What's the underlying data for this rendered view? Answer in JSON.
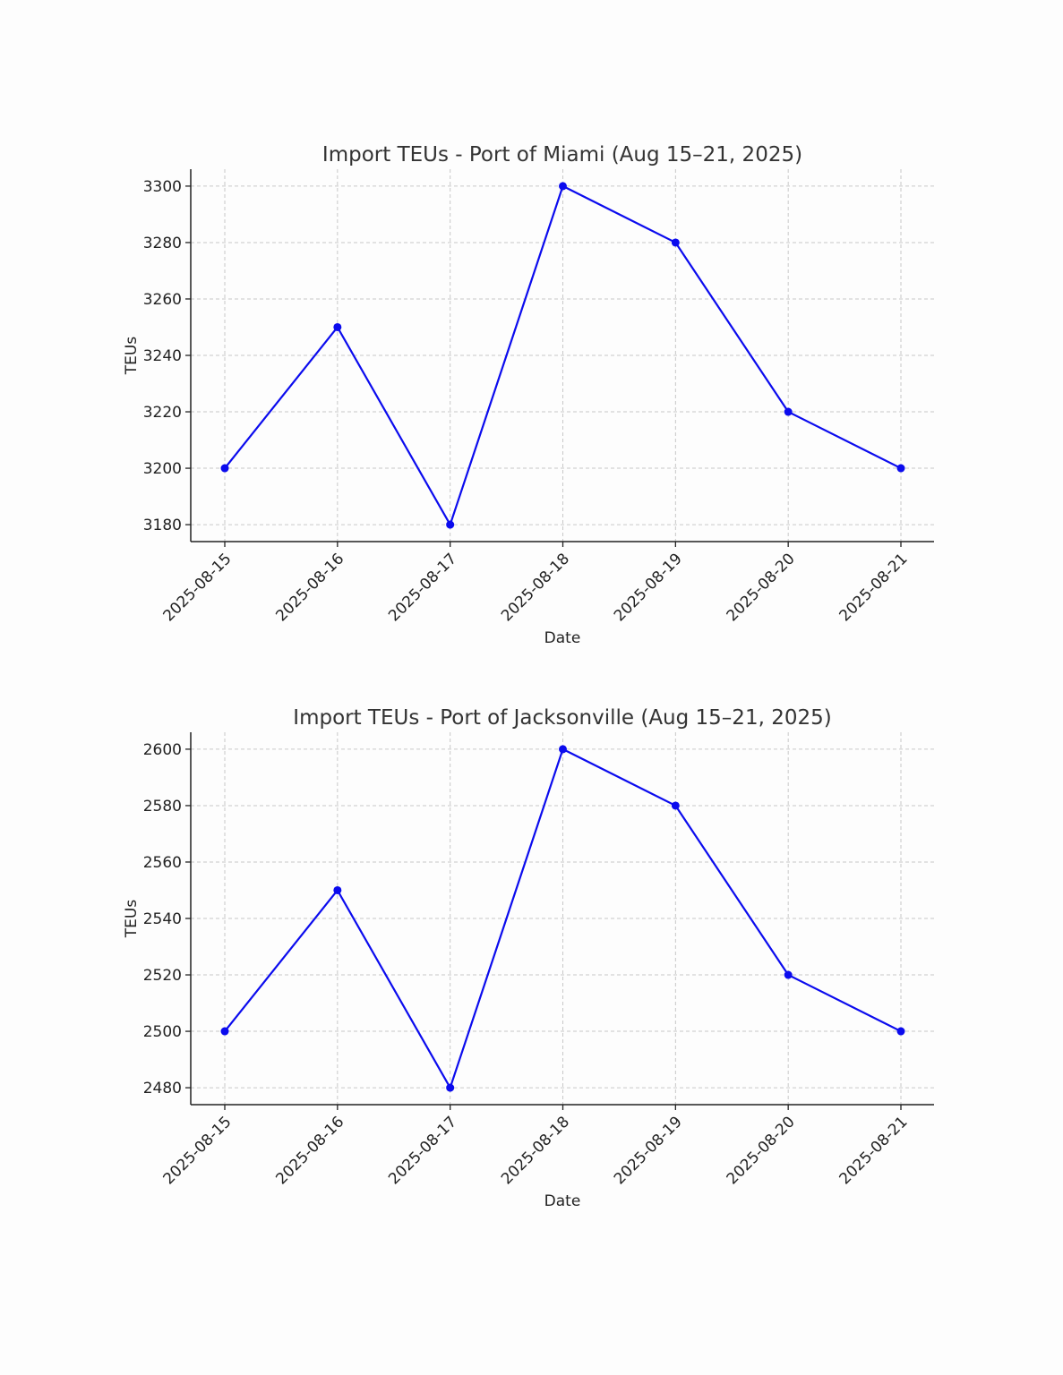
{
  "colors": {
    "series": "#0b0bee",
    "background": "#fdfdfd",
    "grid": "#c8c8c8",
    "axis": "#222222"
  },
  "chart_data": [
    {
      "type": "line",
      "title": "Import TEUs - Port of Miami (Aug 15–21, 2025)",
      "xlabel": "Date",
      "ylabel": "TEUs",
      "categories": [
        "2025-08-15",
        "2025-08-16",
        "2025-08-17",
        "2025-08-18",
        "2025-08-19",
        "2025-08-20",
        "2025-08-21"
      ],
      "series": [
        {
          "values": [
            3200,
            3250,
            3180,
            3300,
            3280,
            3220,
            3200
          ]
        }
      ],
      "yticks": [
        3180,
        3200,
        3220,
        3240,
        3260,
        3280,
        3300
      ],
      "ylim": [
        3174,
        3306
      ],
      "grid": true,
      "legend": "none"
    },
    {
      "type": "line",
      "title": "Import TEUs - Port of Jacksonville (Aug 15–21, 2025)",
      "xlabel": "Date",
      "ylabel": "TEUs",
      "categories": [
        "2025-08-15",
        "2025-08-16",
        "2025-08-17",
        "2025-08-18",
        "2025-08-19",
        "2025-08-20",
        "2025-08-21"
      ],
      "series": [
        {
          "values": [
            2500,
            2550,
            2480,
            2600,
            2580,
            2520,
            2500
          ]
        }
      ],
      "yticks": [
        2480,
        2500,
        2520,
        2540,
        2560,
        2580,
        2600
      ],
      "ylim": [
        2474,
        2606
      ],
      "grid": true,
      "legend": "none"
    }
  ]
}
